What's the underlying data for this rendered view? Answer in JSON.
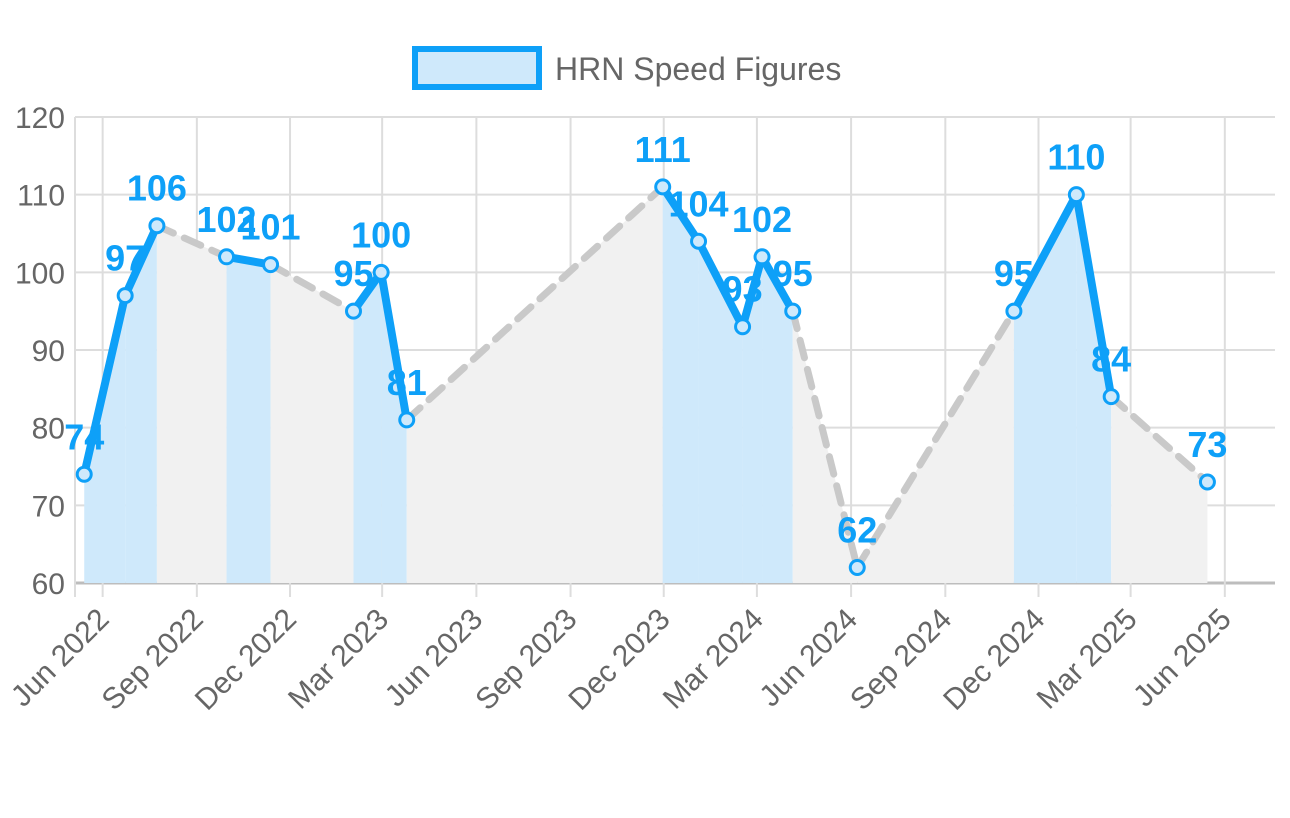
{
  "colors": {
    "line": "#0ea0f8",
    "fill_race": "#cfe9fb",
    "fill_gap": "#f1f1f1",
    "gap_line": "#c9c9c9",
    "grid": "#dddddd",
    "text": "#666666"
  },
  "chart_data": {
    "type": "line",
    "legend": {
      "label": "HRN Speed Figures",
      "position": "top"
    },
    "ylim": [
      60,
      120
    ],
    "yticks": [
      60,
      70,
      80,
      90,
      100,
      110,
      120
    ],
    "xlim": [
      "2022-05-05",
      "2025-07-20"
    ],
    "xticks": [
      {
        "date": "2022-06-01",
        "label": "Jun 2022"
      },
      {
        "date": "2022-09-01",
        "label": "Sep 2022"
      },
      {
        "date": "2022-12-01",
        "label": "Dec 2022"
      },
      {
        "date": "2023-03-01",
        "label": "Mar 2023"
      },
      {
        "date": "2023-06-01",
        "label": "Jun 2023"
      },
      {
        "date": "2023-09-01",
        "label": "Sep 2023"
      },
      {
        "date": "2023-12-01",
        "label": "Dec 2023"
      },
      {
        "date": "2024-03-01",
        "label": "Mar 2024"
      },
      {
        "date": "2024-06-01",
        "label": "Jun 2024"
      },
      {
        "date": "2024-09-01",
        "label": "Sep 2024"
      },
      {
        "date": "2024-12-01",
        "label": "Dec 2024"
      },
      {
        "date": "2025-03-01",
        "label": "Mar 2025"
      },
      {
        "date": "2025-06-01",
        "label": "Jun 2025"
      }
    ],
    "grid": true,
    "series": [
      {
        "name": "HRN Speed Figures",
        "points": [
          {
            "x": "2022-05-14",
            "y": 74
          },
          {
            "x": "2022-06-23",
            "y": 97
          },
          {
            "x": "2022-07-24",
            "y": 106
          },
          {
            "x": "2022-09-30",
            "y": 102
          },
          {
            "x": "2022-11-12",
            "y": 101
          },
          {
            "x": "2023-02-01",
            "y": 95
          },
          {
            "x": "2023-02-28",
            "y": 100
          },
          {
            "x": "2023-03-25",
            "y": 81
          },
          {
            "x": "2023-11-30",
            "y": 111
          },
          {
            "x": "2024-01-04",
            "y": 104
          },
          {
            "x": "2024-02-16",
            "y": 93
          },
          {
            "x": "2024-03-06",
            "y": 102
          },
          {
            "x": "2024-04-05",
            "y": 95
          },
          {
            "x": "2024-06-07",
            "y": 62
          },
          {
            "x": "2024-11-07",
            "y": 95
          },
          {
            "x": "2025-01-07",
            "y": 110
          },
          {
            "x": "2025-02-10",
            "y": 84
          },
          {
            "x": "2025-05-15",
            "y": 73
          }
        ]
      }
    ],
    "gap_segments_after_index": [
      2,
      4,
      7,
      12,
      13,
      16
    ]
  }
}
